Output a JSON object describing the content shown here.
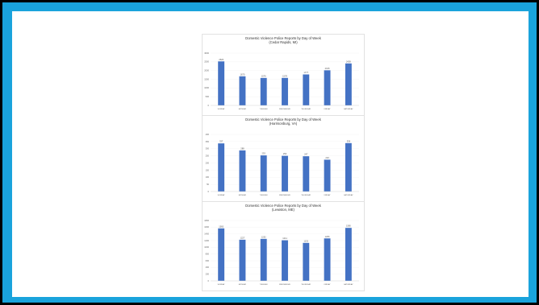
{
  "chart_data": [
    {
      "type": "bar",
      "title_lines": [
        "Domestic Violence Police Reports by Day of Week",
        "(Cedar Rapids, MI)"
      ],
      "categories": [
        "SUNDAY",
        "MONDAY",
        "TUESDAY",
        "WEDNESDAY",
        "THURSDAY",
        "FRIDAY",
        "SATURDAY"
      ],
      "values": [
        2526,
        1670,
        1576,
        1578,
        1777,
        2015,
        2409
      ],
      "ylim": [
        0,
        3000
      ],
      "yticks": [
        "0",
        "500",
        "1000",
        "1500",
        "2000",
        "2500",
        "3000"
      ],
      "color": "#4472c4"
    },
    {
      "type": "bar",
      "title_lines": [
        "Domestic Violence Police Reports by Day of Week",
        "(Harrisonburg, VA)"
      ],
      "categories": [
        "SUNDAY",
        "MONDAY",
        "TUESDAY",
        "WEDNESDAY",
        "THURSDAY",
        "FRIDAY",
        "SATURDAY"
      ],
      "values": [
        337,
        288,
        253,
        250,
        247,
        223,
        339
      ],
      "ylim": [
        0,
        400
      ],
      "yticks": [
        "0",
        "50",
        "100",
        "150",
        "200",
        "250",
        "300",
        "350",
        "400"
      ],
      "color": "#4472c4"
    },
    {
      "type": "bar",
      "title_lines": [
        "Domestic Violence Police Reports by Day of Week",
        "(Lewiston, ME)"
      ],
      "categories": [
        "SUNDAY",
        "MONDAY",
        "TUESDAY",
        "WEDNESDAY",
        "THURSDAY",
        "FRIDAY",
        "SATURDAY"
      ],
      "values": [
        1565,
        1227,
        1252,
        1211,
        1132,
        1266,
        1580
      ],
      "ylim": [
        0,
        1800
      ],
      "yticks": [
        "0",
        "200",
        "400",
        "600",
        "800",
        "1000",
        "1200",
        "1400",
        "1600",
        "1800"
      ],
      "color": "#4472c4"
    }
  ]
}
